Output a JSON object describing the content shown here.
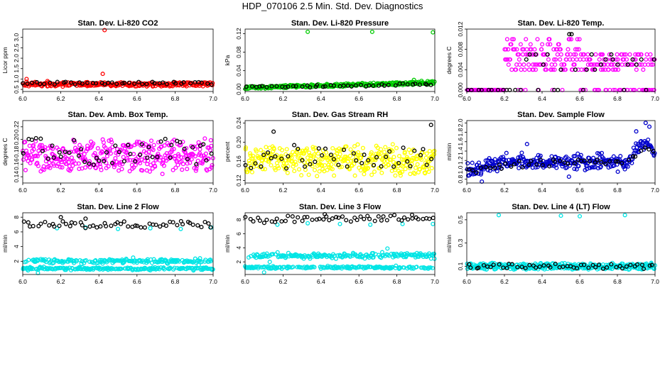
{
  "figure": {
    "title": "HDP_070106  2.5 Min. Std. Dev. Diagnostics"
  },
  "chart_data": [
    {
      "id": "co2",
      "type": "scatter",
      "title": "Stan. Dev. Li-820 CO2",
      "xlabel": "",
      "ylabel": "Licor ppm",
      "xlim": [
        6.0,
        7.0
      ],
      "ylim": [
        0.4,
        3.4
      ],
      "xticks": [
        "6.0",
        "6.2",
        "6.4",
        "6.6",
        "6.8",
        "7.0"
      ],
      "yticks": [
        "0.5",
        "1.0",
        "1.5",
        "2.0",
        "2.5",
        "3.0"
      ],
      "series": [
        {
          "name": "primary",
          "color": "#ff0000",
          "gen": {
            "kind": "band",
            "n": 260,
            "base": [
              0.75,
              0.75
            ],
            "spread": 0.12
          },
          "extra": [
            [
              6.43,
              3.35
            ],
            [
              6.42,
              1.25
            ],
            [
              6.02,
              1.0
            ],
            [
              6.13,
              0.9
            ],
            [
              6.34,
              0.85
            ]
          ]
        },
        {
          "name": "secondary",
          "color": "#000000",
          "gen": {
            "kind": "band",
            "n": 45,
            "base": [
              0.8,
              0.8
            ],
            "spread": 0.08
          }
        }
      ]
    },
    {
      "id": "pressure",
      "type": "scatter",
      "title": "Stan. Dev. Li-820 Pressure",
      "xlabel": "",
      "ylabel": "kPa",
      "xlim": [
        6.0,
        7.0
      ],
      "ylim": [
        -0.005,
        0.13
      ],
      "xticks": [
        "6.0",
        "6.2",
        "6.4",
        "6.6",
        "6.8",
        "7.0"
      ],
      "yticks": [
        "0.00",
        "0.04",
        "0.08",
        "0.12"
      ],
      "series": [
        {
          "name": "primary",
          "color": "#00cc00",
          "gen": {
            "kind": "band",
            "n": 280,
            "base": [
              0.003,
              0.014
            ],
            "spread": 0.004
          },
          "extra": [
            [
              6.33,
              0.124
            ],
            [
              6.67,
              0.124
            ],
            [
              6.99,
              0.123
            ],
            [
              6.93,
              0.018
            ],
            [
              6.89,
              0.02
            ]
          ]
        },
        {
          "name": "secondary",
          "color": "#000000",
          "gen": {
            "kind": "band",
            "n": 45,
            "base": [
              0.004,
              0.011
            ],
            "spread": 0.003
          }
        }
      ]
    },
    {
      "id": "temp",
      "type": "scatter",
      "title": "Stan. Dev. Li-820 Temp.",
      "xlabel": "",
      "ylabel": "degrees C",
      "xlim": [
        6.0,
        7.0
      ],
      "ylim": [
        -0.0003,
        0.012
      ],
      "xticks": [
        "6.0",
        "6.2",
        "6.4",
        "6.6",
        "6.8",
        "7.0"
      ],
      "yticks": [
        "0.000",
        "0.004",
        "0.008",
        "0.012"
      ],
      "series": [
        {
          "name": "primary",
          "color": "#ff00ff",
          "gen": {
            "kind": "levels",
            "n": 320,
            "levels": [
              0,
              0.004,
              0.005,
              0.006,
              0.007,
              0.008,
              0.009,
              0.01
            ],
            "weights": [
              [
                6.0,
                6.2,
                [
                  1,
                  0,
                  0,
                  0,
                  0,
                  0,
                  0,
                  0
                ]
              ],
              [
                6.2,
                6.6,
                [
                  1,
                  2,
                  2,
                  2,
                  2,
                  2,
                  1,
                  1
                ]
              ],
              [
                6.6,
                7.0,
                [
                  2,
                  2,
                  2,
                  1,
                  1,
                  0,
                  0,
                  0
                ]
              ]
            ]
          }
        },
        {
          "name": "secondary",
          "color": "#000000",
          "gen": {
            "kind": "levels",
            "n": 40,
            "levels": [
              0,
              0.004,
              0.005,
              0.006,
              0.007,
              0.008,
              0.011
            ],
            "weights": [
              [
                6.0,
                6.3,
                [
                  1,
                  0,
                  0,
                  0,
                  0,
                  0,
                  0
                ]
              ],
              [
                6.3,
                6.6,
                [
                  1,
                  1,
                  1,
                  1,
                  1,
                  1,
                  1
                ]
              ],
              [
                6.6,
                7.0,
                [
                  1,
                  1,
                  1,
                  1,
                  1,
                  0,
                  0
                ]
              ]
            ]
          }
        }
      ]
    },
    {
      "id": "boxtemp",
      "type": "scatter",
      "title": "Stan. Dev. Amb. Box Temp.",
      "xlabel": "",
      "ylabel": "degrees C",
      "xlim": [
        6.0,
        7.0
      ],
      "ylim": [
        0.13,
        0.23
      ],
      "xticks": [
        "6.0",
        "6.2",
        "6.4",
        "6.6",
        "6.8",
        "7.0"
      ],
      "yticks": [
        "0.14",
        "0.16",
        "0.18",
        "0.20",
        "0.22"
      ],
      "series": [
        {
          "name": "primary",
          "color": "#ff00ff",
          "gen": {
            "kind": "band",
            "n": 360,
            "base": [
              0.173,
              0.173
            ],
            "spread": 0.03
          }
        },
        {
          "name": "secondary",
          "color": "#000000",
          "gen": {
            "kind": "band",
            "n": 50,
            "base": [
              0.185,
              0.18
            ],
            "spread": 0.028
          }
        }
      ]
    },
    {
      "id": "rh",
      "type": "scatter",
      "title": "Stan. Dev. Gas Stream RH",
      "xlabel": "",
      "ylabel": "percent",
      "xlim": [
        6.0,
        7.0
      ],
      "ylim": [
        0.115,
        0.245
      ],
      "xticks": [
        "6.0",
        "6.2",
        "6.4",
        "6.6",
        "6.8",
        "7.0"
      ],
      "yticks": [
        "0.12",
        "0.16",
        "0.20",
        "0.24"
      ],
      "series": [
        {
          "name": "primary",
          "color": "#ffff00",
          "gen": {
            "kind": "band",
            "n": 360,
            "base": [
              0.162,
              0.162
            ],
            "spread": 0.035
          }
        },
        {
          "name": "secondary",
          "color": "#000000",
          "gen": {
            "kind": "band",
            "n": 45,
            "base": [
              0.165,
              0.165
            ],
            "spread": 0.03
          },
          "extra": [
            [
              6.98,
              0.236
            ],
            [
              6.15,
              0.222
            ]
          ]
        }
      ]
    },
    {
      "id": "flow",
      "type": "scatter",
      "title": "Stan. Dev. Sample Flow",
      "xlabel": "",
      "ylabel": "ml/min",
      "xlim": [
        6.0,
        7.0
      ],
      "ylim": [
        0.72,
        2.05
      ],
      "xticks": [
        "6.0",
        "6.2",
        "6.4",
        "6.6",
        "6.8",
        "7.0"
      ],
      "yticks": [
        "0.8",
        "1.0",
        "1.2",
        "1.4",
        "1.6",
        "1.8",
        "2.0"
      ],
      "series": [
        {
          "name": "primary",
          "color": "#0000cc",
          "gen": {
            "kind": "piecewise",
            "n": 330,
            "pts": [
              [
                6.0,
                0.95
              ],
              [
                6.1,
                1.08
              ],
              [
                6.3,
                1.18
              ],
              [
                6.6,
                1.15
              ],
              [
                6.85,
                1.15
              ],
              [
                6.92,
                1.5
              ],
              [
                6.96,
                1.6
              ],
              [
                7.0,
                1.35
              ]
            ],
            "spread": 0.16
          },
          "extra": [
            [
              6.95,
              2.0
            ],
            [
              6.97,
              1.92
            ],
            [
              6.08,
              0.75
            ],
            [
              6.32,
              1.55
            ],
            [
              6.9,
              1.82
            ]
          ]
        },
        {
          "name": "secondary",
          "color": "#000000",
          "gen": {
            "kind": "piecewise",
            "n": 45,
            "pts": [
              [
                6.0,
                0.98
              ],
              [
                6.3,
                1.15
              ],
              [
                6.85,
                1.18
              ],
              [
                6.95,
                1.5
              ],
              [
                7.0,
                1.35
              ]
            ],
            "spread": 0.08
          }
        }
      ]
    },
    {
      "id": "line2",
      "type": "scatter",
      "title": "Stan. Dev. Line 2 Flow",
      "xlabel": "",
      "ylabel": "ml/min",
      "xlim": [
        6.0,
        7.0
      ],
      "ylim": [
        0.2,
        8.6
      ],
      "xticks": [
        "6.0",
        "6.2",
        "6.4",
        "6.6",
        "6.8",
        "7.0"
      ],
      "yticks": [
        "2",
        "4",
        "6",
        "8"
      ],
      "series": [
        {
          "name": "primary",
          "color": "#00e5e5",
          "gen": {
            "kind": "multiband",
            "n": 380,
            "bands": [
              [
                2.0,
                0.25,
                0.5
              ],
              [
                1.0,
                0.15,
                0.5
              ]
            ]
          },
          "extra": [
            [
              6.18,
              6.5
            ],
            [
              6.33,
              6.6
            ],
            [
              6.5,
              6.4
            ],
            [
              6.67,
              6.5
            ],
            [
              6.83,
              6.4
            ],
            [
              6.99,
              6.6
            ],
            [
              6.08,
              0.4
            ],
            [
              6.58,
              2.5
            ]
          ]
        },
        {
          "name": "secondary",
          "color": "#000000",
          "gen": {
            "kind": "band",
            "n": 55,
            "base": [
              7.0,
              7.0
            ],
            "spread": 0.5
          },
          "extra": [
            [
              6.2,
              8.0
            ],
            [
              6.33,
              7.8
            ]
          ]
        }
      ]
    },
    {
      "id": "line3",
      "type": "scatter",
      "title": "Stan. Dev. Line 3 Flow",
      "xlabel": "",
      "ylabel": "ml/min",
      "xlim": [
        6.0,
        7.0
      ],
      "ylim": [
        0.2,
        9.0
      ],
      "xticks": [
        "6.0",
        "6.2",
        "6.4",
        "6.6",
        "6.8",
        "7.0"
      ],
      "yticks": [
        "2",
        "4",
        "6",
        "8"
      ],
      "series": [
        {
          "name": "primary",
          "color": "#00e5e5",
          "gen": {
            "kind": "multiband",
            "n": 380,
            "bands": [
              [
                2.9,
                0.3,
                0.55
              ],
              [
                1.2,
                0.15,
                0.45
              ]
            ]
          },
          "extra": [
            [
              6.17,
              7.3
            ],
            [
              6.33,
              7.5
            ],
            [
              6.5,
              7.4
            ],
            [
              6.66,
              7.3
            ],
            [
              6.83,
              7.4
            ],
            [
              6.99,
              7.4
            ],
            [
              6.1,
              0.5
            ],
            [
              6.75,
              3.9
            ],
            [
              6.13,
              2.0
            ]
          ]
        },
        {
          "name": "secondary",
          "color": "#000000",
          "gen": {
            "kind": "band",
            "n": 55,
            "base": [
              8.1,
              8.3
            ],
            "spread": 0.6
          },
          "extra": [
            [
              6.42,
              8.8
            ],
            [
              6.88,
              8.7
            ]
          ]
        }
      ]
    },
    {
      "id": "line4",
      "type": "scatter",
      "title": "Stan. Dev. Line 4 (LT) Flow",
      "xlabel": "",
      "ylabel": "ml/min",
      "xlim": [
        6.0,
        7.0
      ],
      "ylim": [
        0.03,
        0.56
      ],
      "xticks": [
        "6.0",
        "6.2",
        "6.4",
        "6.6",
        "6.8",
        "7.0"
      ],
      "yticks": [
        "0.1",
        "0.3",
        "0.5"
      ],
      "series": [
        {
          "name": "primary",
          "color": "#00e5e5",
          "gen": {
            "kind": "band",
            "n": 360,
            "base": [
              0.1,
              0.1
            ],
            "spread": 0.03
          },
          "extra": [
            [
              6.17,
              0.54
            ],
            [
              6.5,
              0.535
            ],
            [
              6.6,
              0.53
            ],
            [
              6.84,
              0.54
            ],
            [
              6.98,
              0.13
            ]
          ]
        },
        {
          "name": "secondary",
          "color": "#000000",
          "gen": {
            "kind": "band",
            "n": 50,
            "base": [
              0.1,
              0.1
            ],
            "spread": 0.025
          }
        }
      ]
    }
  ]
}
